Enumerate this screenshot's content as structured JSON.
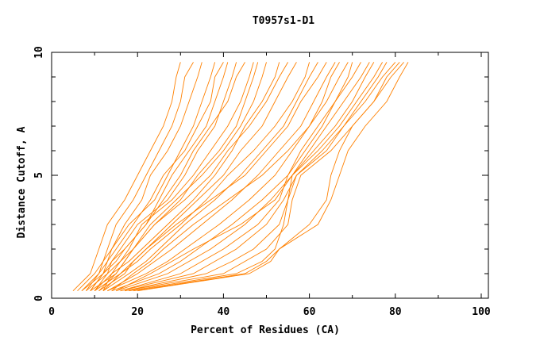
{
  "chart_data": {
    "type": "line",
    "title": "T0957s1-D1",
    "xlabel": "Percent of Residues (CA)",
    "ylabel": "Distance Cutoff, A",
    "xlim": [
      0,
      101.7
    ],
    "ylim": [
      0,
      10
    ],
    "x_ticks": [
      "0",
      "20",
      "40",
      "60",
      "80",
      "100"
    ],
    "y_ticks": [
      "0",
      "5",
      "10"
    ],
    "grid": false,
    "line_color": "#ff8000",
    "y_levels": [
      0.3,
      1,
      1.5,
      2,
      3,
      4,
      5,
      6,
      7,
      8,
      9,
      9.6
    ],
    "series": [
      {
        "x": [
          5,
          9,
          10,
          11,
          13,
          17,
          20,
          23,
          26,
          28,
          29,
          30
        ]
      },
      {
        "x": [
          6,
          10,
          12,
          13,
          15,
          19,
          22,
          25,
          28,
          30,
          31,
          33
        ]
      },
      {
        "x": [
          7,
          11,
          12,
          14,
          17,
          21,
          23,
          27,
          30,
          32,
          34,
          35
        ]
      },
      {
        "x": [
          7,
          12,
          13,
          14,
          18,
          24,
          27,
          30,
          33,
          35,
          37,
          38
        ]
      },
      {
        "x": [
          8,
          11,
          13,
          15,
          19,
          23,
          26,
          31,
          34,
          37,
          38,
          40
        ]
      },
      {
        "x": [
          8,
          13,
          14,
          16,
          20,
          27,
          31,
          34,
          38,
          40,
          42,
          43
        ]
      },
      {
        "x": [
          9,
          12,
          14,
          17,
          22,
          26,
          30,
          33,
          37,
          41,
          43,
          45
        ]
      },
      {
        "x": [
          9,
          15,
          17,
          19,
          24,
          30,
          34,
          39,
          43,
          45,
          47,
          48
        ]
      },
      {
        "x": [
          10,
          13,
          16,
          18,
          21,
          28,
          33,
          37,
          41,
          44,
          46,
          47
        ]
      },
      {
        "x": [
          10,
          14,
          18,
          21,
          27,
          33,
          38,
          42,
          45,
          49,
          52,
          53
        ]
      },
      {
        "x": [
          11,
          17,
          19,
          22,
          28,
          34,
          40,
          44,
          49,
          52,
          55,
          57
        ]
      },
      {
        "x": [
          11,
          15,
          17,
          19,
          24,
          31,
          37,
          41,
          46,
          50,
          53,
          55
        ]
      },
      {
        "x": [
          12,
          18,
          22,
          25,
          31,
          38,
          44,
          49,
          54,
          57,
          60,
          62
        ]
      },
      {
        "x": [
          12,
          16,
          19,
          22,
          29,
          37,
          45,
          50,
          55,
          58,
          62,
          64
        ]
      },
      {
        "x": [
          13,
          20,
          24,
          28,
          35,
          42,
          48,
          53,
          58,
          61,
          64,
          66
        ]
      },
      {
        "x": [
          13,
          22,
          27,
          31,
          39,
          46,
          52,
          56,
          60,
          63,
          65,
          67
        ]
      },
      {
        "x": [
          14,
          19,
          23,
          26,
          33,
          41,
          49,
          55,
          60,
          64,
          67,
          69
        ]
      },
      {
        "x": [
          14,
          25,
          30,
          34,
          42,
          49,
          55,
          59,
          63,
          66,
          69,
          70
        ]
      },
      {
        "x": [
          15,
          27,
          32,
          37,
          45,
          51,
          56,
          60,
          64,
          68,
          72,
          74
        ]
      },
      {
        "x": [
          15,
          23,
          28,
          33,
          44,
          52,
          56,
          61,
          66,
          70,
          73,
          75
        ]
      },
      {
        "x": [
          16,
          30,
          35,
          40,
          48,
          53,
          55,
          58,
          62,
          66,
          70,
          72
        ]
      },
      {
        "x": [
          16,
          33,
          38,
          43,
          50,
          54,
          57,
          63,
          68,
          72,
          76,
          78
        ]
      },
      {
        "x": [
          17,
          36,
          42,
          47,
          53,
          55,
          57,
          64,
          68,
          73,
          77,
          80
        ]
      },
      {
        "x": [
          17,
          40,
          45,
          50,
          55,
          56,
          58,
          65,
          70,
          75,
          78,
          81
        ]
      },
      {
        "x": [
          18,
          43,
          49,
          52,
          54,
          55,
          56,
          62,
          67,
          71,
          75,
          77
        ]
      },
      {
        "x": [
          19,
          45,
          50,
          53,
          60,
          64,
          65,
          67,
          70,
          75,
          79,
          82
        ]
      },
      {
        "x": [
          20,
          46,
          51,
          53,
          62,
          65,
          67,
          69,
          73,
          78,
          81,
          83
        ]
      },
      {
        "x": [
          10,
          16,
          20,
          23,
          30,
          36,
          41,
          47,
          52,
          56,
          59,
          60
        ]
      },
      {
        "x": [
          12,
          14,
          16,
          19,
          23,
          29,
          35,
          40,
          44,
          47,
          49,
          50
        ]
      },
      {
        "x": [
          9,
          12,
          15,
          17,
          22,
          25,
          28,
          32,
          36,
          38,
          40,
          41
        ]
      }
    ]
  }
}
